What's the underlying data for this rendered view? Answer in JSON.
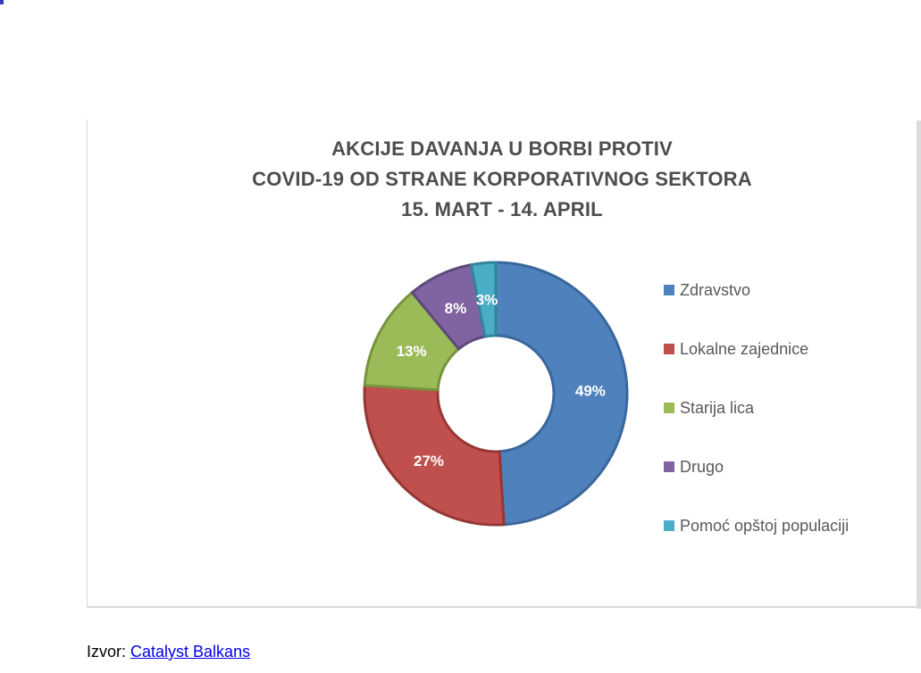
{
  "page": {
    "corner_dot_color": "#3a3ac0"
  },
  "chart": {
    "title_lines": {
      "0": "AKCIJE DAVANJA U BORBI PROTIV",
      "1": "COVID-19 OD STRANE KORPORATIVNOG SEKTORA",
      "2": "15. MART - 14. APRIL"
    },
    "title_color": "#4d4d4d",
    "legend_text_color": "#595959"
  },
  "chart_data": {
    "type": "pie",
    "subtype": "doughnut",
    "title": "AKCIJE DAVANJA U BORBI PROTIV COVID-19 OD STRANE KORPORATIVNOG SEKTORA 15. MART - 14. APRIL",
    "categories": [
      "Zdravstvo",
      "Lokalne zajednice",
      "Starija lica",
      "Drugo",
      "Pomoć opštoj populaciji"
    ],
    "values": [
      49,
      27,
      13,
      8,
      3
    ],
    "data_labels": [
      "49%",
      "27%",
      "13%",
      "8%",
      "3%"
    ],
    "colors": [
      "#4F81BD",
      "#C0504D",
      "#9BBB59",
      "#8064A2",
      "#4BACC6"
    ],
    "border_colors": [
      "#3A679C",
      "#953735",
      "#77933C",
      "#5F497A",
      "#31849B"
    ],
    "legend_position": "right",
    "start_angle_deg": 0,
    "direction": "clockwise",
    "hole_ratio": 0.44
  },
  "source": {
    "prefix": "Izvor: ",
    "link_text": "Catalyst Balkans"
  }
}
